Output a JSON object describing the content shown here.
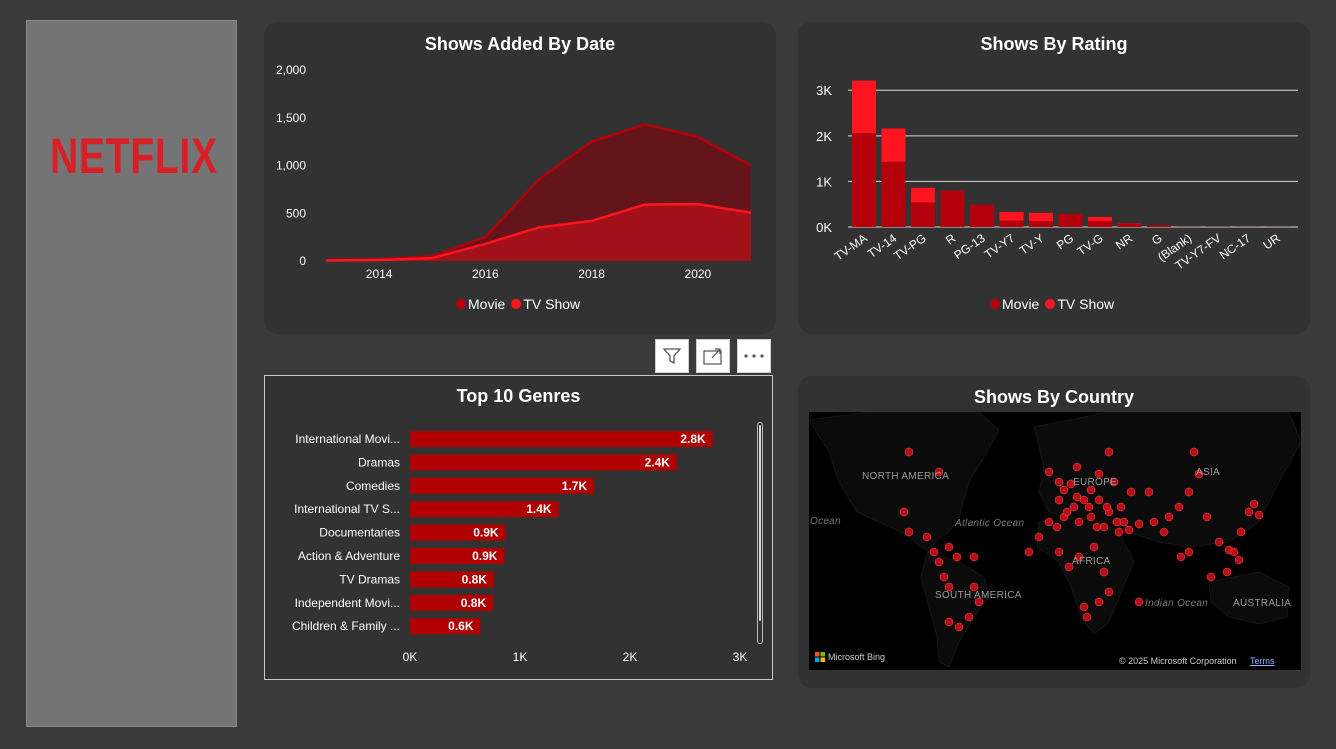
{
  "sidebar": {
    "logo_text": "NETFLIX"
  },
  "colors": {
    "movie": "#b3000b",
    "tv_show": "#ff1420",
    "bar": "#b00000",
    "background": "#3a3a3a",
    "card": "#323232"
  },
  "toolbar": {
    "filter_icon": "filter-icon",
    "focus_icon": "focus-mode-icon",
    "more_icon": "more-options-icon"
  },
  "chart_data": [
    {
      "id": "shows_added_by_date",
      "type": "area",
      "title": "Shows Added By Date",
      "x": [
        2013,
        2014,
        2015,
        2016,
        2017,
        2018,
        2019,
        2020,
        2021
      ],
      "x_ticks": [
        "2014",
        "2016",
        "2018",
        "2020"
      ],
      "y_ticks": [
        "2,000",
        "1,500",
        "1,000",
        "500",
        "0"
      ],
      "ylim": [
        0,
        2000
      ],
      "series": [
        {
          "name": "Movie",
          "values": [
            10,
            20,
            50,
            250,
            850,
            1250,
            1430,
            1300,
            1000
          ]
        },
        {
          "name": "TV Show",
          "values": [
            5,
            10,
            30,
            180,
            350,
            420,
            590,
            595,
            505
          ]
        }
      ],
      "legend": [
        "Movie",
        "TV Show"
      ],
      "legend_position": "bottom"
    },
    {
      "id": "shows_by_rating",
      "type": "bar",
      "stacked": true,
      "title": "Shows By Rating",
      "categories": [
        "TV-MA",
        "TV-14",
        "TV-PG",
        "R",
        "PG-13",
        "TV-Y7",
        "TV-Y",
        "PG",
        "TV-G",
        "NR",
        "G",
        "(Blank)",
        "TV-Y7-FV",
        "NC-17",
        "UR"
      ],
      "y_ticks": [
        "3K",
        "2K",
        "1K",
        "0K"
      ],
      "ylim": [
        0,
        3400
      ],
      "series": [
        {
          "name": "Movie",
          "values": [
            2060,
            1430,
            540,
            800,
            490,
            140,
            130,
            290,
            130,
            80,
            40,
            3,
            5,
            3,
            3
          ]
        },
        {
          "name": "TV Show",
          "values": [
            1150,
            730,
            320,
            2,
            0,
            190,
            180,
            0,
            90,
            5,
            0,
            2,
            1,
            0,
            0
          ]
        }
      ],
      "legend": [
        "Movie",
        "TV Show"
      ],
      "legend_position": "bottom"
    },
    {
      "id": "top_10_genres",
      "type": "bar",
      "orientation": "horizontal",
      "title": "Top 10 Genres",
      "categories": [
        "International Movi...",
        "Dramas",
        "Comedies",
        "International TV S...",
        "Documentaries",
        "Action & Adventure",
        "TV Dramas",
        "Independent Movi...",
        "Children & Family ..."
      ],
      "values": [
        2752,
        2427,
        1674,
        1351,
        869,
        859,
        763,
        756,
        641
      ],
      "data_labels": [
        "2.8K",
        "2.4K",
        "1.7K",
        "1.4K",
        "0.9K",
        "0.9K",
        "0.8K",
        "0.8K",
        "0.6K"
      ],
      "x_ticks": [
        "0K",
        "1K",
        "2K",
        "3K"
      ],
      "xlim": [
        0,
        3000
      ]
    },
    {
      "id": "shows_by_country",
      "type": "map",
      "title": "Shows By Country",
      "labels": [
        "NORTH AMERICA",
        "EUROPE",
        "ASIA",
        "AFRICA",
        "SOUTH AMERICA",
        "AUSTRALIA",
        "Atlantic Ocean",
        "Indian Ocean",
        "Ocean"
      ],
      "provider": "Microsoft Bing",
      "copyright": "© 2025 Microsoft Corporation",
      "terms": "Terms"
    }
  ]
}
